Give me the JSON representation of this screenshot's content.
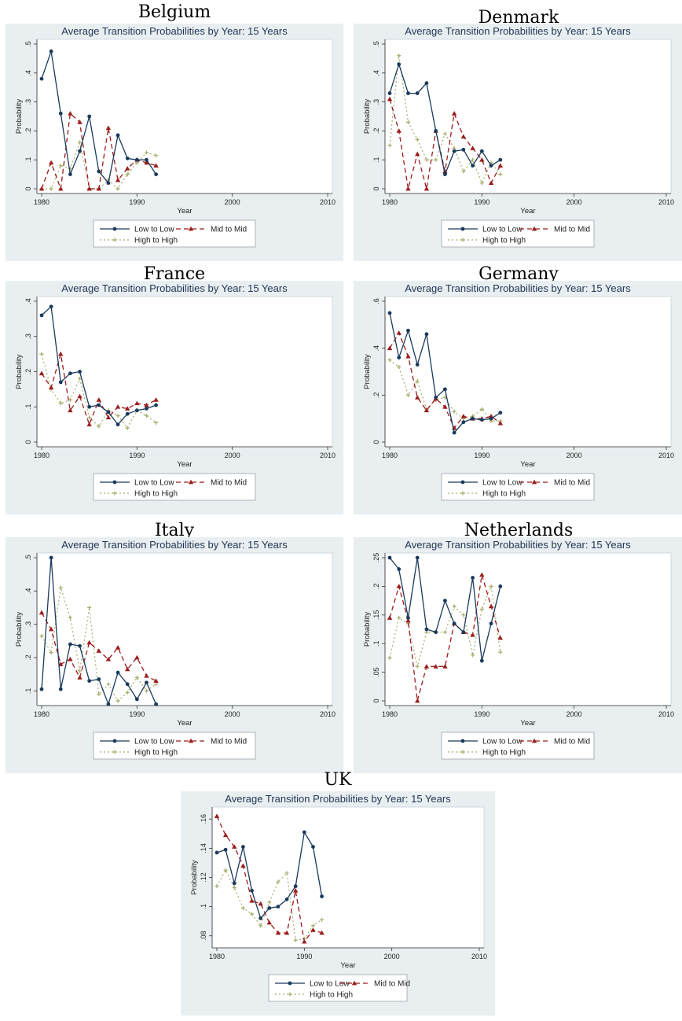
{
  "chart_data": [
    {
      "type": "line",
      "country": "Belgium",
      "title": "Average Transition Probabilities by Year: 15 Years",
      "xlabel": "Year",
      "ylabel": "Probability",
      "xlim": [
        1980,
        2010
      ],
      "xticks": [
        1980,
        1990,
        2000,
        2010
      ],
      "ylim": [
        0,
        0.5
      ],
      "yticks": [
        0,
        0.1,
        0.2,
        0.3,
        0.4,
        0.5
      ],
      "yticklabels": [
        "0",
        ".1",
        ".2",
        ".3",
        ".4",
        ".5"
      ],
      "x": [
        1980,
        1981,
        1982,
        1983,
        1984,
        1985,
        1986,
        1987,
        1988,
        1989,
        1990,
        1991,
        1992
      ],
      "grid": false,
      "legend_position": "bottom",
      "series": [
        {
          "name": "Low to Low",
          "values": [
            0.38,
            0.475,
            0.26,
            0.05,
            0.13,
            0.25,
            0.06,
            0.02,
            0.185,
            0.105,
            0.1,
            0.1,
            0.05
          ]
        },
        {
          "name": "Mid to Mid",
          "values": [
            0.0,
            0.09,
            0.0,
            0.26,
            0.23,
            0.0,
            0.0,
            0.21,
            0.03,
            0.07,
            0.1,
            0.09,
            0.08
          ]
        },
        {
          "name": "High to High",
          "values": [
            0.0,
            0.0,
            0.08,
            0.07,
            0.16,
            0.0,
            0.0,
            0.03,
            0.0,
            0.05,
            0.09,
            0.125,
            0.115
          ]
        }
      ]
    },
    {
      "type": "line",
      "country": "Denmark",
      "title": "Average Transition Probabilities by Year: 15 Years",
      "xlabel": "Year",
      "ylabel": "Probability",
      "xlim": [
        1980,
        2010
      ],
      "xticks": [
        1980,
        1990,
        2000,
        2010
      ],
      "ylim": [
        0,
        0.5
      ],
      "yticks": [
        0,
        0.1,
        0.2,
        0.3,
        0.4,
        0.5
      ],
      "yticklabels": [
        "0",
        ".1",
        ".2",
        ".3",
        ".4",
        ".5"
      ],
      "x": [
        1980,
        1981,
        1982,
        1983,
        1984,
        1985,
        1986,
        1987,
        1988,
        1989,
        1990,
        1991,
        1992
      ],
      "grid": false,
      "legend_position": "bottom",
      "series": [
        {
          "name": "Low to Low",
          "values": [
            0.33,
            0.43,
            0.33,
            0.33,
            0.365,
            0.2,
            0.05,
            0.13,
            0.135,
            0.08,
            0.13,
            0.08,
            0.1
          ]
        },
        {
          "name": "Mid to Mid",
          "values": [
            0.31,
            0.2,
            0.0,
            0.12,
            0.0,
            0.2,
            0.06,
            0.26,
            0.18,
            0.14,
            0.1,
            0.02,
            0.08
          ]
        },
        {
          "name": "High to High",
          "values": [
            0.15,
            0.46,
            0.23,
            0.17,
            0.1,
            0.1,
            0.19,
            0.14,
            0.06,
            0.1,
            0.02,
            0.09,
            0.05
          ]
        }
      ]
    },
    {
      "type": "line",
      "country": "France",
      "title": "Average Transition Probabilities by Year: 15 Years",
      "xlabel": "Year",
      "ylabel": "Probability",
      "xlim": [
        1980,
        2010
      ],
      "xticks": [
        1980,
        1990,
        2000,
        2010
      ],
      "ylim": [
        0,
        0.4
      ],
      "yticks": [
        0,
        0.1,
        0.2,
        0.3,
        0.4
      ],
      "yticklabels": [
        "0",
        ".1",
        ".2",
        ".3",
        ".4"
      ],
      "x": [
        1980,
        1981,
        1982,
        1983,
        1984,
        1985,
        1986,
        1987,
        1988,
        1989,
        1990,
        1991,
        1992
      ],
      "grid": false,
      "legend_position": "bottom",
      "series": [
        {
          "name": "Low to Low",
          "values": [
            0.36,
            0.385,
            0.17,
            0.195,
            0.2,
            0.1,
            0.105,
            0.085,
            0.05,
            0.08,
            0.09,
            0.095,
            0.105
          ]
        },
        {
          "name": "Mid to Mid",
          "values": [
            0.195,
            0.155,
            0.25,
            0.09,
            0.13,
            0.05,
            0.12,
            0.07,
            0.1,
            0.095,
            0.11,
            0.105,
            0.12
          ]
        },
        {
          "name": "High to High",
          "values": [
            0.25,
            0.15,
            0.11,
            0.12,
            0.18,
            0.07,
            0.045,
            0.09,
            0.075,
            0.04,
            0.09,
            0.075,
            0.055
          ]
        }
      ]
    },
    {
      "type": "line",
      "country": "Germany",
      "title": "Average Transition Probabilities by Year: 15 Years",
      "xlabel": "Year",
      "ylabel": "Probability",
      "xlim": [
        1980,
        2010
      ],
      "xticks": [
        1980,
        1990,
        2000,
        2010
      ],
      "ylim": [
        0,
        0.6
      ],
      "yticks": [
        0,
        0.2,
        0.4,
        0.6
      ],
      "yticklabels": [
        "0",
        ".2",
        ".4",
        ".6"
      ],
      "x": [
        1980,
        1981,
        1982,
        1983,
        1984,
        1985,
        1986,
        1987,
        1988,
        1989,
        1990,
        1991,
        1992
      ],
      "grid": false,
      "legend_position": "bottom",
      "series": [
        {
          "name": "Low to Low",
          "values": [
            0.55,
            0.36,
            0.475,
            0.33,
            0.46,
            0.19,
            0.225,
            0.04,
            0.085,
            0.1,
            0.095,
            0.1,
            0.125
          ]
        },
        {
          "name": "Mid to Mid",
          "values": [
            0.4,
            0.465,
            0.365,
            0.19,
            0.135,
            0.185,
            0.15,
            0.06,
            0.11,
            0.1,
            0.1,
            0.11,
            0.08
          ]
        },
        {
          "name": "High to High",
          "values": [
            0.35,
            0.32,
            0.2,
            0.26,
            0.14,
            0.18,
            0.19,
            0.13,
            0.1,
            0.11,
            0.14,
            0.09,
            0.09
          ]
        }
      ]
    },
    {
      "type": "line",
      "country": "Italy",
      "title": "Average Transition Probabilities by Year: 15 Years",
      "xlabel": "Year",
      "ylabel": "Probability",
      "xlim": [
        1980,
        2010
      ],
      "xticks": [
        1980,
        1990,
        2000,
        2010
      ],
      "ylim": [
        0.07,
        0.5
      ],
      "yticks": [
        0.1,
        0.2,
        0.3,
        0.4,
        0.5
      ],
      "yticklabels": [
        ".1",
        ".2",
        ".3",
        ".4",
        ".5"
      ],
      "x": [
        1980,
        1981,
        1982,
        1983,
        1984,
        1985,
        1986,
        1987,
        1988,
        1989,
        1990,
        1991,
        1992
      ],
      "grid": false,
      "legend_position": "bottom",
      "series": [
        {
          "name": "Low to Low",
          "values": [
            0.105,
            0.5,
            0.105,
            0.24,
            0.235,
            0.13,
            0.135,
            0.06,
            0.155,
            0.12,
            0.075,
            0.125,
            0.06
          ]
        },
        {
          "name": "Mid to Mid",
          "values": [
            0.335,
            0.285,
            0.18,
            0.195,
            0.14,
            0.245,
            0.22,
            0.195,
            0.23,
            0.165,
            0.2,
            0.145,
            0.13
          ]
        },
        {
          "name": "High to High",
          "values": [
            0.265,
            0.215,
            0.41,
            0.32,
            0.16,
            0.35,
            0.09,
            0.12,
            0.07,
            0.095,
            0.14,
            0.1,
            0.12
          ]
        }
      ]
    },
    {
      "type": "line",
      "country": "Netherlands",
      "title": "Average Transition Probabilities by Year: 15 Years",
      "xlabel": "Year",
      "ylabel": "Probability",
      "xlim": [
        1980,
        2010
      ],
      "xticks": [
        1980,
        1990,
        2000,
        2010
      ],
      "ylim": [
        0,
        0.25
      ],
      "yticks": [
        0,
        0.05,
        0.1,
        0.15,
        0.2,
        0.25
      ],
      "yticklabels": [
        "0",
        ".05",
        ".1",
        ".15",
        ".2",
        ".25"
      ],
      "x": [
        1980,
        1981,
        1982,
        1983,
        1984,
        1985,
        1986,
        1987,
        1988,
        1989,
        1990,
        1991,
        1992
      ],
      "grid": false,
      "legend_position": "bottom",
      "series": [
        {
          "name": "Low to Low",
          "values": [
            0.25,
            0.23,
            0.145,
            0.25,
            0.125,
            0.12,
            0.175,
            0.135,
            0.12,
            0.215,
            0.07,
            0.135,
            0.2
          ]
        },
        {
          "name": "Mid to Mid",
          "values": [
            0.145,
            0.2,
            0.14,
            0.0,
            0.06,
            0.06,
            0.06,
            0.135,
            0.12,
            0.115,
            0.22,
            0.165,
            0.11
          ]
        },
        {
          "name": "High to High",
          "values": [
            0.075,
            0.145,
            0.135,
            0.06,
            0.12,
            0.12,
            0.12,
            0.165,
            0.15,
            0.08,
            0.16,
            0.2,
            0.085
          ]
        }
      ]
    },
    {
      "type": "line",
      "country": "UK",
      "title": "Average Transition Probabilities by Year: 15 Years",
      "xlabel": "Year",
      "ylabel": "Probability",
      "xlim": [
        1980,
        2010
      ],
      "xticks": [
        1980,
        1990,
        2000,
        2010
      ],
      "ylim": [
        0.075,
        0.165
      ],
      "yticks": [
        0.08,
        0.1,
        0.12,
        0.14,
        0.16
      ],
      "yticklabels": [
        ".08",
        ".1",
        ".12",
        ".14",
        ".16"
      ],
      "x": [
        1980,
        1981,
        1982,
        1983,
        1984,
        1985,
        1986,
        1987,
        1988,
        1989,
        1990,
        1991,
        1992
      ],
      "grid": false,
      "legend_position": "bottom",
      "series": [
        {
          "name": "Low to Low",
          "values": [
            0.137,
            0.139,
            0.116,
            0.141,
            0.111,
            0.092,
            0.099,
            0.1,
            0.105,
            0.114,
            0.151,
            0.141,
            0.107
          ]
        },
        {
          "name": "Mid to Mid",
          "values": [
            0.162,
            0.149,
            0.141,
            0.128,
            0.104,
            0.102,
            0.089,
            0.082,
            0.082,
            0.111,
            0.076,
            0.084,
            0.082
          ]
        },
        {
          "name": "High to High",
          "values": [
            0.114,
            0.125,
            0.113,
            0.099,
            0.095,
            0.087,
            0.103,
            0.117,
            0.123,
            0.077,
            0.078,
            0.087,
            0.091
          ]
        }
      ]
    }
  ],
  "colors": {
    "low": "#1a3a5c",
    "mid": "#9b1c1c",
    "high": "#a6ad6a",
    "panel_bg": "#e9eef1",
    "plot_bg": "#ffffff",
    "title": "#1f3552"
  }
}
